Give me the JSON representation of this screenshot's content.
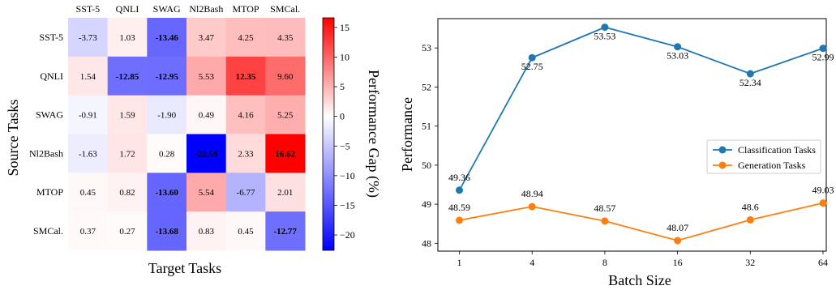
{
  "chart_data": [
    {
      "type": "heatmap",
      "xlabel": "Target Tasks",
      "ylabel": "Source Tasks",
      "columns": [
        "SST-5",
        "QNLI",
        "SWAG",
        "Nl2Bash",
        "MTOP",
        "SMCal."
      ],
      "rows": [
        "SST-5",
        "QNLI",
        "SWAG",
        "Nl2Bash",
        "MTOP",
        "SMCal."
      ],
      "values": [
        [
          "-3.73",
          "1.03",
          "-13.46",
          "3.47",
          "4.25",
          "4.35"
        ],
        [
          "1.54",
          "-12.85",
          "-12.95",
          "5.53",
          "12.35",
          "9.60"
        ],
        [
          "-0.91",
          "1.59",
          "-1.90",
          "0.49",
          "4.16",
          "5.25"
        ],
        [
          "-1.63",
          "1.72",
          "0.28",
          "-22.59",
          "2.33",
          "16.62"
        ],
        [
          "0.45",
          "0.82",
          "-13.60",
          "5.54",
          "-6.77",
          "2.01"
        ],
        [
          "0.37",
          "0.27",
          "-13.68",
          "0.83",
          "0.45",
          "-12.77"
        ]
      ],
      "colorbar": {
        "label": "Performance Gap (%)",
        "ticks": [
          "15",
          "10",
          "5",
          "0",
          "−5",
          "−10",
          "−15",
          "−20"
        ],
        "tick_values": [
          15,
          10,
          5,
          0,
          -5,
          -10,
          -15,
          -20
        ],
        "range": [
          -22.59,
          16.62
        ],
        "colormap": "bwr",
        "low_color": "#0000ff",
        "mid_color": "#ffffff",
        "high_color": "#ff0000"
      }
    },
    {
      "type": "line",
      "xlabel": "Batch Size",
      "ylabel": "Performance",
      "categories": [
        "1",
        "4",
        "8",
        "16",
        "32",
        "64"
      ],
      "yticks": [
        "48",
        "49",
        "50",
        "51",
        "52",
        "53"
      ],
      "ylim": [
        47.8,
        53.75
      ],
      "legend_position": "center-right",
      "series": [
        {
          "name": "Classification Tasks",
          "color": "#1f77b4",
          "values": [
            49.36,
            52.75,
            53.53,
            53.03,
            52.34,
            52.99
          ],
          "labels": [
            "49.36",
            "52.75",
            "53.53",
            "53.03",
            "52.34",
            "52.99"
          ]
        },
        {
          "name": "Generation Tasks",
          "color": "#ff7f0e",
          "values": [
            48.59,
            48.94,
            48.57,
            48.07,
            48.6,
            49.03
          ],
          "labels": [
            "48.59",
            "48.94",
            "48.57",
            "48.07",
            "48.6",
            "49.03"
          ]
        }
      ]
    }
  ]
}
